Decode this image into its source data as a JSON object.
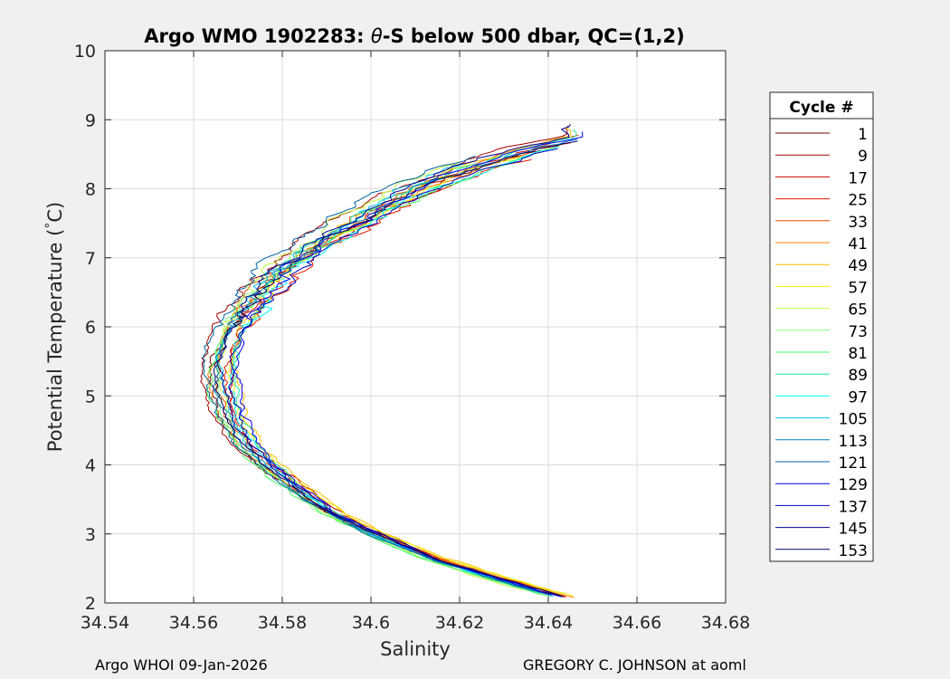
{
  "chart_data": {
    "type": "line",
    "title_prefix": "Argo WMO 1902283: ",
    "title_theta": "θ",
    "title_suffix": "-S below 500 dbar,  QC=(1,2)",
    "xlabel": "Salinity",
    "ylabel": "Potential Temperature (",
    "ylabel_deg": "°",
    "ylabel_end": "C)",
    "xlim": [
      34.54,
      34.68
    ],
    "ylim": [
      2,
      10
    ],
    "xticks": [
      "34.54",
      "34.56",
      "34.58",
      "34.6",
      "34.62",
      "34.64",
      "34.66",
      "34.68"
    ],
    "yticks": [
      "2",
      "3",
      "4",
      "5",
      "6",
      "7",
      "8",
      "9",
      "10"
    ],
    "grid": true,
    "legend_title": "Cycle #",
    "legend_position": "right",
    "legend": [
      {
        "label": "1",
        "color": "#7f0000"
      },
      {
        "label": "9",
        "color": "#a50000"
      },
      {
        "label": "17",
        "color": "#cc0000"
      },
      {
        "label": "25",
        "color": "#e61a00"
      },
      {
        "label": "33",
        "color": "#f24a00"
      },
      {
        "label": "41",
        "color": "#ff8000"
      },
      {
        "label": "49",
        "color": "#ffbf00"
      },
      {
        "label": "57",
        "color": "#f2f200"
      },
      {
        "label": "65",
        "color": "#bfff40"
      },
      {
        "label": "73",
        "color": "#80ff80"
      },
      {
        "label": "81",
        "color": "#40ff60"
      },
      {
        "label": "89",
        "color": "#20e6a0"
      },
      {
        "label": "97",
        "color": "#00ffff"
      },
      {
        "label": "105",
        "color": "#00bfff"
      },
      {
        "label": "113",
        "color": "#0080c0"
      },
      {
        "label": "121",
        "color": "#0060a0"
      },
      {
        "label": "129",
        "color": "#0000ff"
      },
      {
        "label": "137",
        "color": "#0000c0"
      },
      {
        "label": "145",
        "color": "#000090"
      },
      {
        "label": "153",
        "color": "#000066"
      }
    ],
    "mean_profile": [
      {
        "s": 34.645,
        "t": 2.08
      },
      {
        "s": 34.63,
        "t": 2.35
      },
      {
        "s": 34.615,
        "t": 2.65
      },
      {
        "s": 34.602,
        "t": 3.0
      },
      {
        "s": 34.592,
        "t": 3.3
      },
      {
        "s": 34.584,
        "t": 3.65
      },
      {
        "s": 34.577,
        "t": 4.0
      },
      {
        "s": 34.572,
        "t": 4.3
      },
      {
        "s": 34.568,
        "t": 4.7
      },
      {
        "s": 34.566,
        "t": 5.1
      },
      {
        "s": 34.566,
        "t": 5.5
      },
      {
        "s": 34.568,
        "t": 5.9
      },
      {
        "s": 34.572,
        "t": 6.3
      },
      {
        "s": 34.579,
        "t": 6.8
      },
      {
        "s": 34.588,
        "t": 7.2
      },
      {
        "s": 34.598,
        "t": 7.6
      },
      {
        "s": 34.61,
        "t": 8.0
      },
      {
        "s": 34.622,
        "t": 8.3
      },
      {
        "s": 34.634,
        "t": 8.55
      },
      {
        "s": 34.648,
        "t": 8.75
      }
    ]
  },
  "footer": {
    "left": "Argo WHOI 09-Jan-2026",
    "right": "GREGORY C. JOHNSON at aoml"
  }
}
